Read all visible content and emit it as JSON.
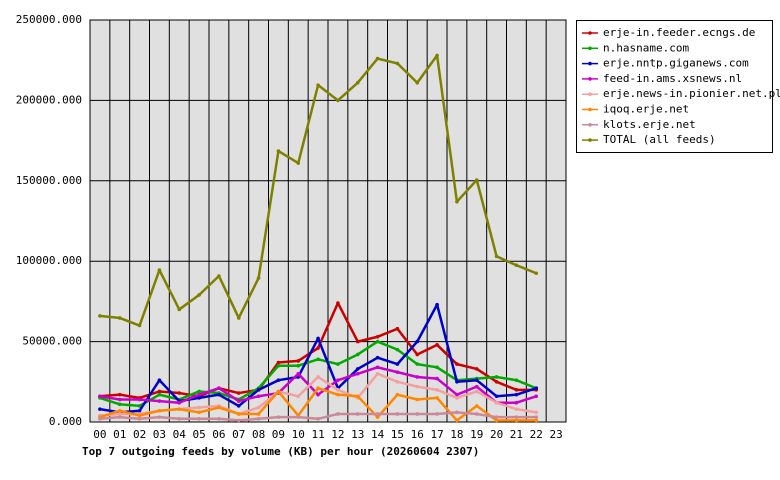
{
  "chart_data": {
    "type": "line",
    "title": "Top 7 outgoing feeds by volume (KB) per hour (20260604 2307)",
    "categories": [
      "00",
      "01",
      "02",
      "03",
      "04",
      "05",
      "06",
      "07",
      "08",
      "09",
      "10",
      "11",
      "12",
      "13",
      "14",
      "15",
      "16",
      "17",
      "18",
      "19",
      "20",
      "21",
      "22",
      "23"
    ],
    "series": [
      {
        "name": "erje-in.feeder.ecngs.de",
        "color": "#cc0000",
        "values": [
          16000,
          17000,
          15000,
          19000,
          18000,
          16000,
          21000,
          18000,
          20000,
          37000,
          38000,
          46000,
          74000,
          50000,
          53000,
          58000,
          42000,
          48000,
          36000,
          33000,
          25000,
          20000,
          20000,
          null
        ]
      },
      {
        "name": "n.hasname.com",
        "color": "#00aa00",
        "values": [
          15000,
          11000,
          10000,
          17000,
          14000,
          19000,
          18000,
          14000,
          21000,
          35000,
          35000,
          39000,
          36000,
          42000,
          50000,
          45000,
          36000,
          34000,
          26000,
          27000,
          28000,
          26000,
          21000,
          null
        ]
      },
      {
        "name": "erje.nntp.giganews.com",
        "color": "#0000cc",
        "values": [
          8000,
          6000,
          7000,
          26000,
          13000,
          15000,
          17000,
          10000,
          20000,
          26000,
          28000,
          52000,
          21000,
          33000,
          40000,
          36000,
          50000,
          73000,
          25000,
          26000,
          16000,
          17000,
          21000,
          null
        ]
      },
      {
        "name": "feed-in.ams.xsnews.nl",
        "color": "#cc00cc",
        "values": [
          16000,
          14000,
          14000,
          13000,
          12000,
          17000,
          21000,
          13000,
          16000,
          18000,
          30000,
          17000,
          26000,
          30000,
          34000,
          31000,
          28000,
          27000,
          17000,
          22000,
          12000,
          12000,
          16000,
          null
        ]
      },
      {
        "name": "erje.news-in.pionier.net.pl",
        "color": "#f4a0a0",
        "values": [
          4000,
          5000,
          5000,
          7000,
          8000,
          9000,
          10000,
          5000,
          9000,
          19000,
          16000,
          28000,
          20000,
          15000,
          30000,
          25000,
          22000,
          20000,
          15000,
          19000,
          12000,
          8000,
          6000,
          null
        ]
      },
      {
        "name": "iqoq.erje.net",
        "color": "#ff8800",
        "values": [
          3000,
          7000,
          4000,
          7000,
          8000,
          6000,
          9000,
          5000,
          5000,
          19000,
          4000,
          21000,
          17000,
          16000,
          3000,
          17000,
          14000,
          15000,
          1000,
          10000,
          1000,
          1000,
          1000,
          null
        ]
      },
      {
        "name": "klots.erje.net",
        "color": "#cc8899",
        "values": [
          2000,
          3000,
          2000,
          3000,
          2000,
          2000,
          2000,
          1000,
          2000,
          3000,
          3000,
          2000,
          5000,
          5000,
          5000,
          5000,
          5000,
          5000,
          6000,
          5000,
          3000,
          3000,
          3000,
          null
        ]
      },
      {
        "name": "TOTAL (all feeds)",
        "color": "#808000",
        "values": [
          66000,
          64700,
          60000,
          94500,
          70000,
          79000,
          90800,
          64700,
          89500,
          168500,
          161000,
          209500,
          200000,
          211000,
          226000,
          223000,
          211000,
          228000,
          137000,
          150500,
          103000,
          97500,
          92500,
          null
        ]
      }
    ],
    "ylim": [
      0,
      250000
    ],
    "yticks": [
      {
        "value": 0,
        "label": "0.000"
      },
      {
        "value": 50000,
        "label": "50000.000"
      },
      {
        "value": 100000,
        "label": "100000.000"
      },
      {
        "value": 150000,
        "label": "150000.000"
      },
      {
        "value": 200000,
        "label": "200000.000"
      },
      {
        "value": 250000,
        "label": "250000.000"
      }
    ],
    "grid": true,
    "legend": "right"
  }
}
